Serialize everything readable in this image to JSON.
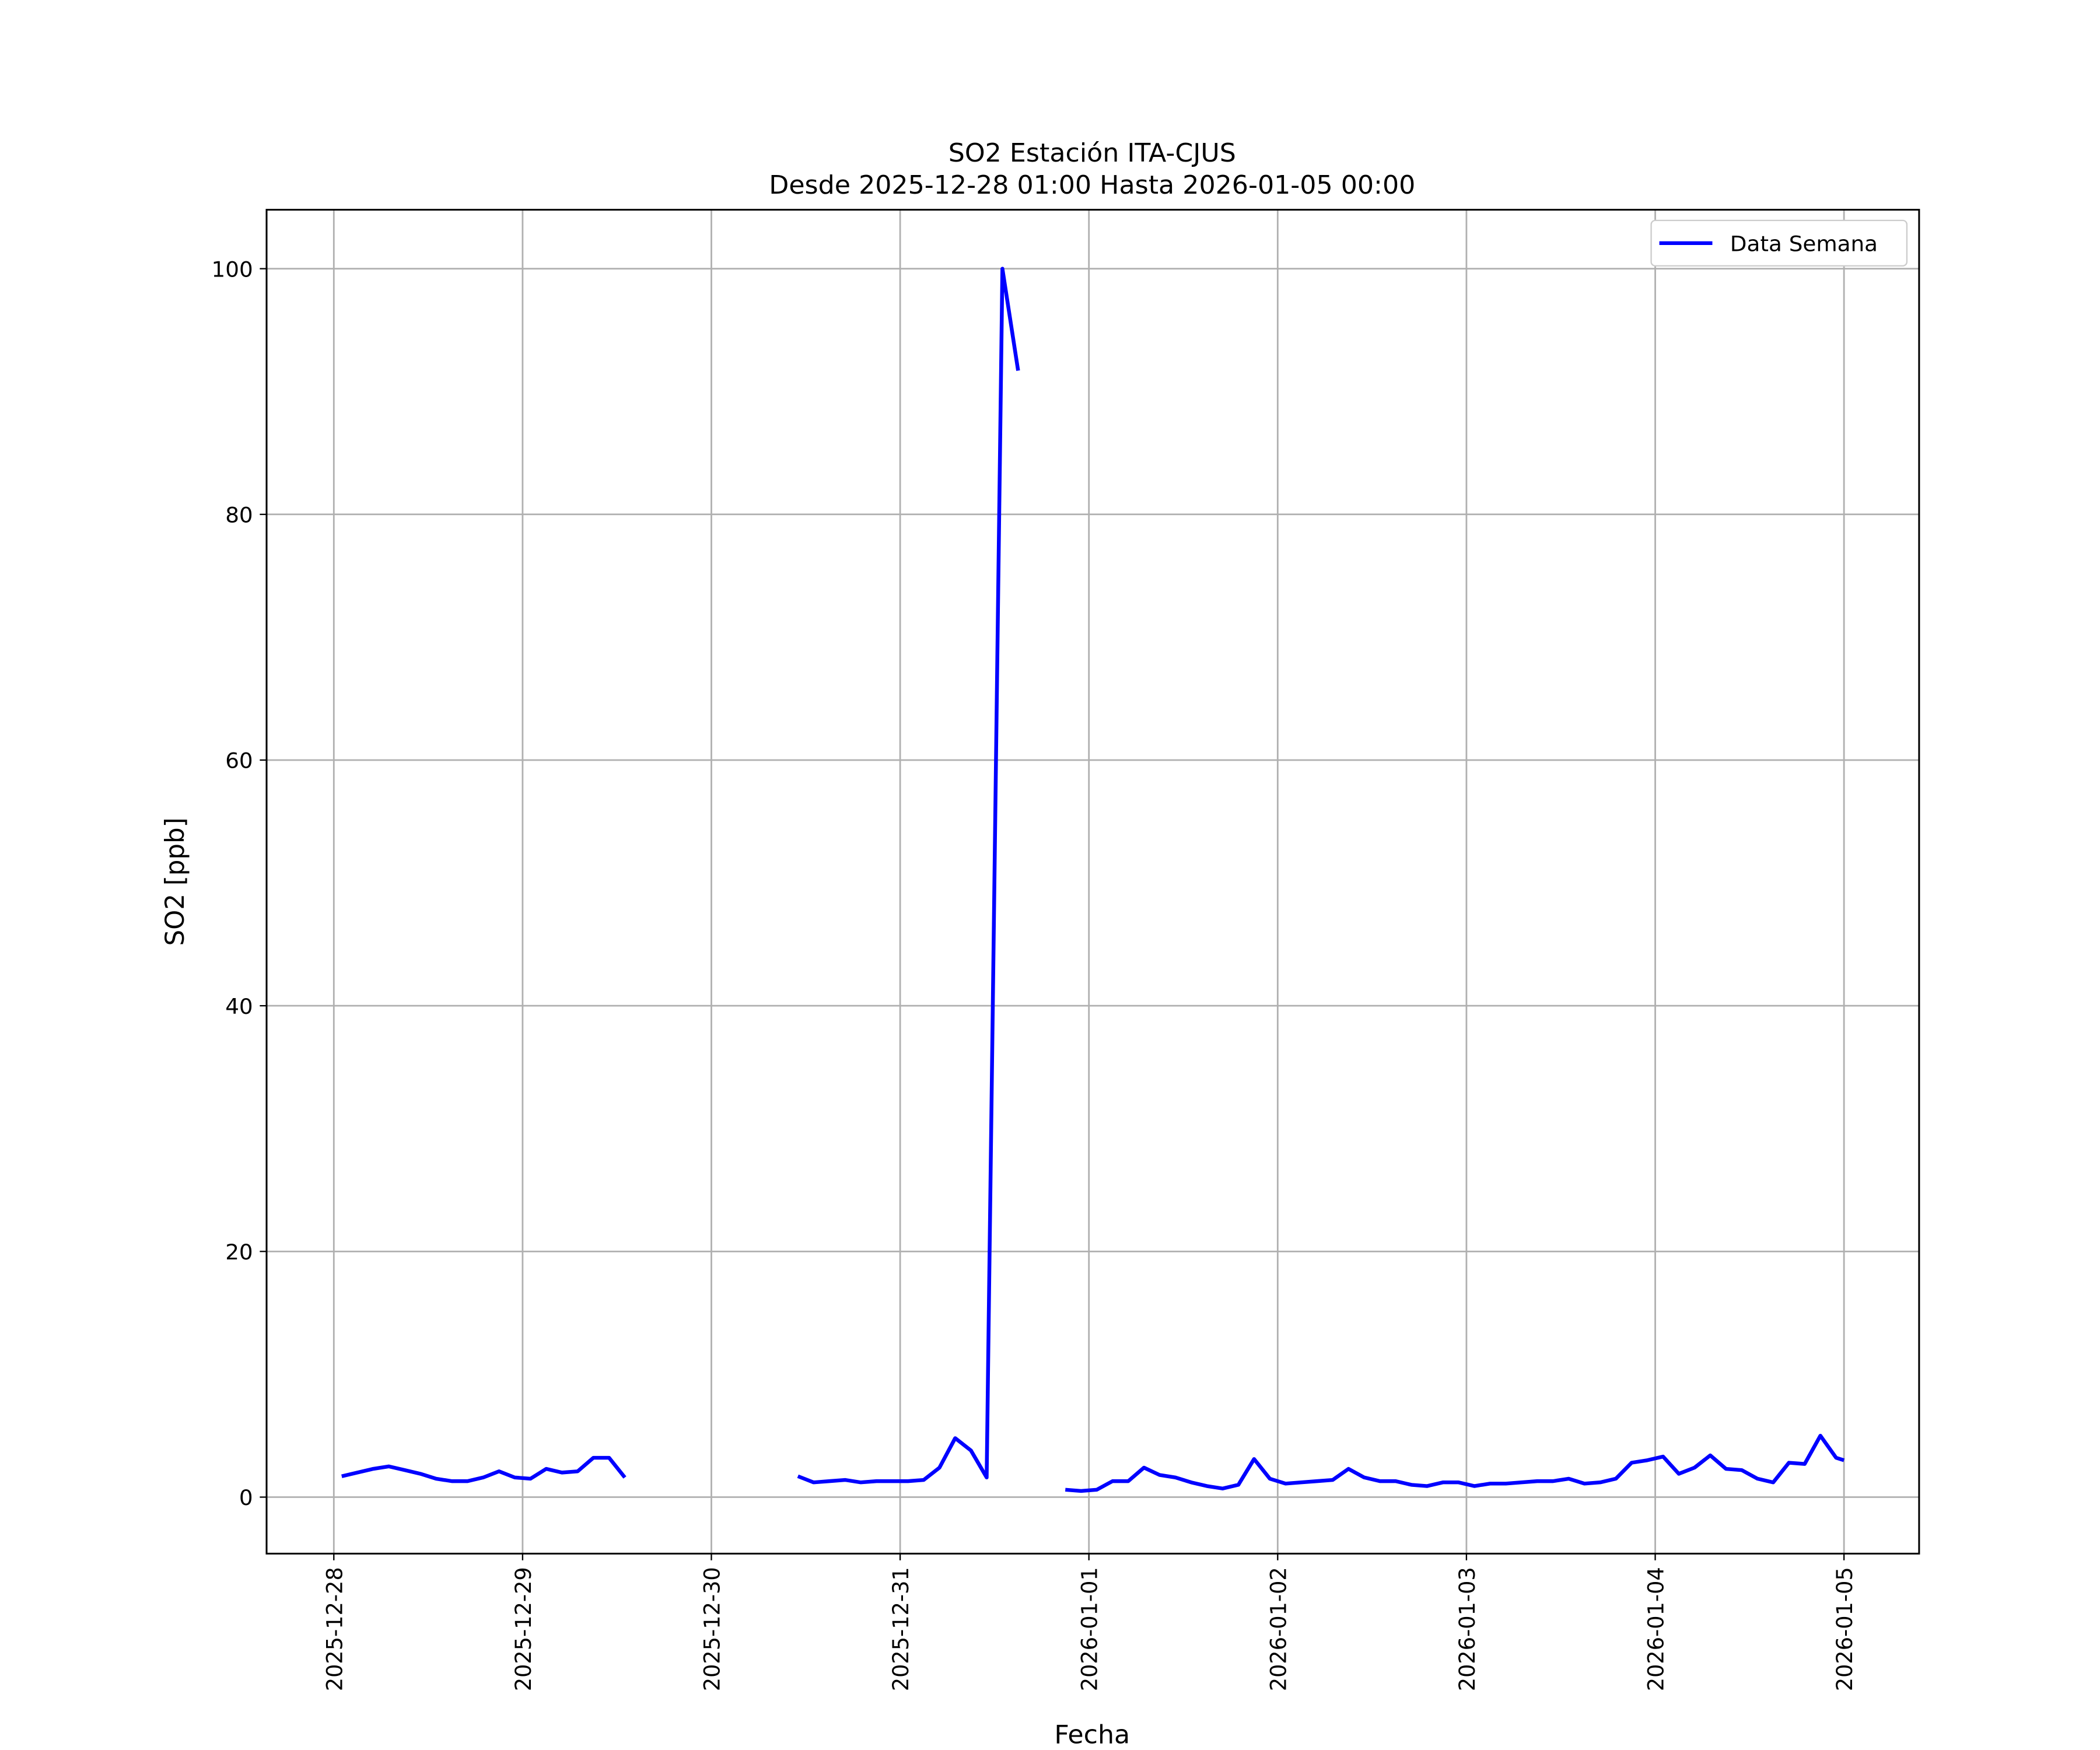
{
  "chart_data": {
    "type": "line",
    "title": "SO2 Estación ITA-CJUS",
    "subtitle": "Desde 2025-12-28 01:00 Hasta 2026-01-05 00:00",
    "xlabel": "Fecha",
    "ylabel": "SO2 [ppb]",
    "x": [
      "2025-12-28 01:00",
      "2025-12-28 03:00",
      "2025-12-28 05:00",
      "2025-12-28 07:00",
      "2025-12-28 09:00",
      "2025-12-28 11:00",
      "2025-12-28 13:00",
      "2025-12-28 15:00",
      "2025-12-28 17:00",
      "2025-12-28 19:00",
      "2025-12-28 21:00",
      "2025-12-28 23:00",
      "2025-12-29 01:00",
      "2025-12-29 03:00",
      "2025-12-29 05:00",
      "2025-12-29 07:00",
      "2025-12-29 09:00",
      "2025-12-29 11:00",
      "2025-12-29 13:00",
      "2025-12-29 15:00",
      "2025-12-29 17:00",
      "2025-12-29 19:00",
      "2025-12-29 21:00",
      "2025-12-29 23:00",
      "2025-12-30 01:00",
      "2025-12-30 03:00",
      "2025-12-30 05:00",
      "2025-12-30 07:00",
      "2025-12-30 09:00",
      "2025-12-30 11:00",
      "2025-12-30 13:00",
      "2025-12-30 15:00",
      "2025-12-30 17:00",
      "2025-12-30 19:00",
      "2025-12-30 21:00",
      "2025-12-30 23:00",
      "2025-12-31 01:00",
      "2025-12-31 03:00",
      "2025-12-31 05:00",
      "2025-12-31 07:00",
      "2025-12-31 09:00",
      "2025-12-31 11:00",
      "2025-12-31 13:00",
      "2025-12-31 15:00",
      "2025-12-31 17:00",
      "2025-12-31 19:00",
      "2025-12-31 21:00",
      "2025-12-31 23:00",
      "2026-01-01 01:00",
      "2026-01-01 03:00",
      "2026-01-01 05:00",
      "2026-01-01 07:00",
      "2026-01-01 09:00",
      "2026-01-01 11:00",
      "2026-01-01 13:00",
      "2026-01-01 15:00",
      "2026-01-01 17:00",
      "2026-01-01 19:00",
      "2026-01-01 21:00",
      "2026-01-01 23:00",
      "2026-01-02 01:00",
      "2026-01-02 03:00",
      "2026-01-02 05:00",
      "2026-01-02 07:00",
      "2026-01-02 09:00",
      "2026-01-02 11:00",
      "2026-01-02 13:00",
      "2026-01-02 15:00",
      "2026-01-02 17:00",
      "2026-01-02 19:00",
      "2026-01-02 21:00",
      "2026-01-02 23:00",
      "2026-01-03 01:00",
      "2026-01-03 03:00",
      "2026-01-03 05:00",
      "2026-01-03 07:00",
      "2026-01-03 09:00",
      "2026-01-03 11:00",
      "2026-01-03 13:00",
      "2026-01-03 15:00",
      "2026-01-03 17:00",
      "2026-01-03 19:00",
      "2026-01-03 21:00",
      "2026-01-03 23:00",
      "2026-01-04 01:00",
      "2026-01-04 03:00",
      "2026-01-04 05:00",
      "2026-01-04 07:00",
      "2026-01-04 09:00",
      "2026-01-04 11:00",
      "2026-01-04 13:00",
      "2026-01-04 15:00",
      "2026-01-04 17:00",
      "2026-01-04 19:00",
      "2026-01-04 21:00",
      "2026-01-04 23:00",
      "2026-01-05 00:00"
    ],
    "series": [
      {
        "name": "Data Semana",
        "color": "#0000ff",
        "values": [
          1.7,
          2.0,
          2.3,
          2.5,
          2.2,
          1.9,
          1.5,
          1.3,
          1.3,
          1.6,
          2.1,
          1.6,
          1.5,
          2.3,
          2.0,
          2.1,
          3.2,
          3.2,
          1.6,
          null,
          null,
          null,
          null,
          null,
          null,
          null,
          null,
          null,
          null,
          1.7,
          1.2,
          1.3,
          1.4,
          1.2,
          1.3,
          1.3,
          1.3,
          1.4,
          2.4,
          4.8,
          3.8,
          1.6,
          100,
          91.7,
          null,
          null,
          0.6,
          0.5,
          0.6,
          1.3,
          1.3,
          2.4,
          1.8,
          1.6,
          1.2,
          0.9,
          0.7,
          1.0,
          3.1,
          1.5,
          1.1,
          1.2,
          1.3,
          1.4,
          2.3,
          1.6,
          1.3,
          1.3,
          1.0,
          0.9,
          1.2,
          1.2,
          0.9,
          1.1,
          1.1,
          1.2,
          1.3,
          1.3,
          1.5,
          1.1,
          1.2,
          1.5,
          2.8,
          3.0,
          3.3,
          1.9,
          2.4,
          3.4,
          2.3,
          2.2,
          1.5,
          1.2,
          2.8,
          2.7,
          5.0,
          3.2,
          3.0
        ]
      }
    ],
    "xlim": [
      "2025-12-27 15:27",
      "2026-01-05 09:33"
    ],
    "xticks": [
      "2025-12-28",
      "2025-12-29",
      "2025-12-30",
      "2025-12-31",
      "2026-01-01",
      "2026-01-02",
      "2026-01-03",
      "2026-01-04",
      "2026-01-05"
    ],
    "ylim": [
      -4.6,
      104.8
    ],
    "yticks": [
      0,
      20,
      40,
      60,
      80,
      100
    ],
    "grid": true,
    "legend": "upper right"
  }
}
